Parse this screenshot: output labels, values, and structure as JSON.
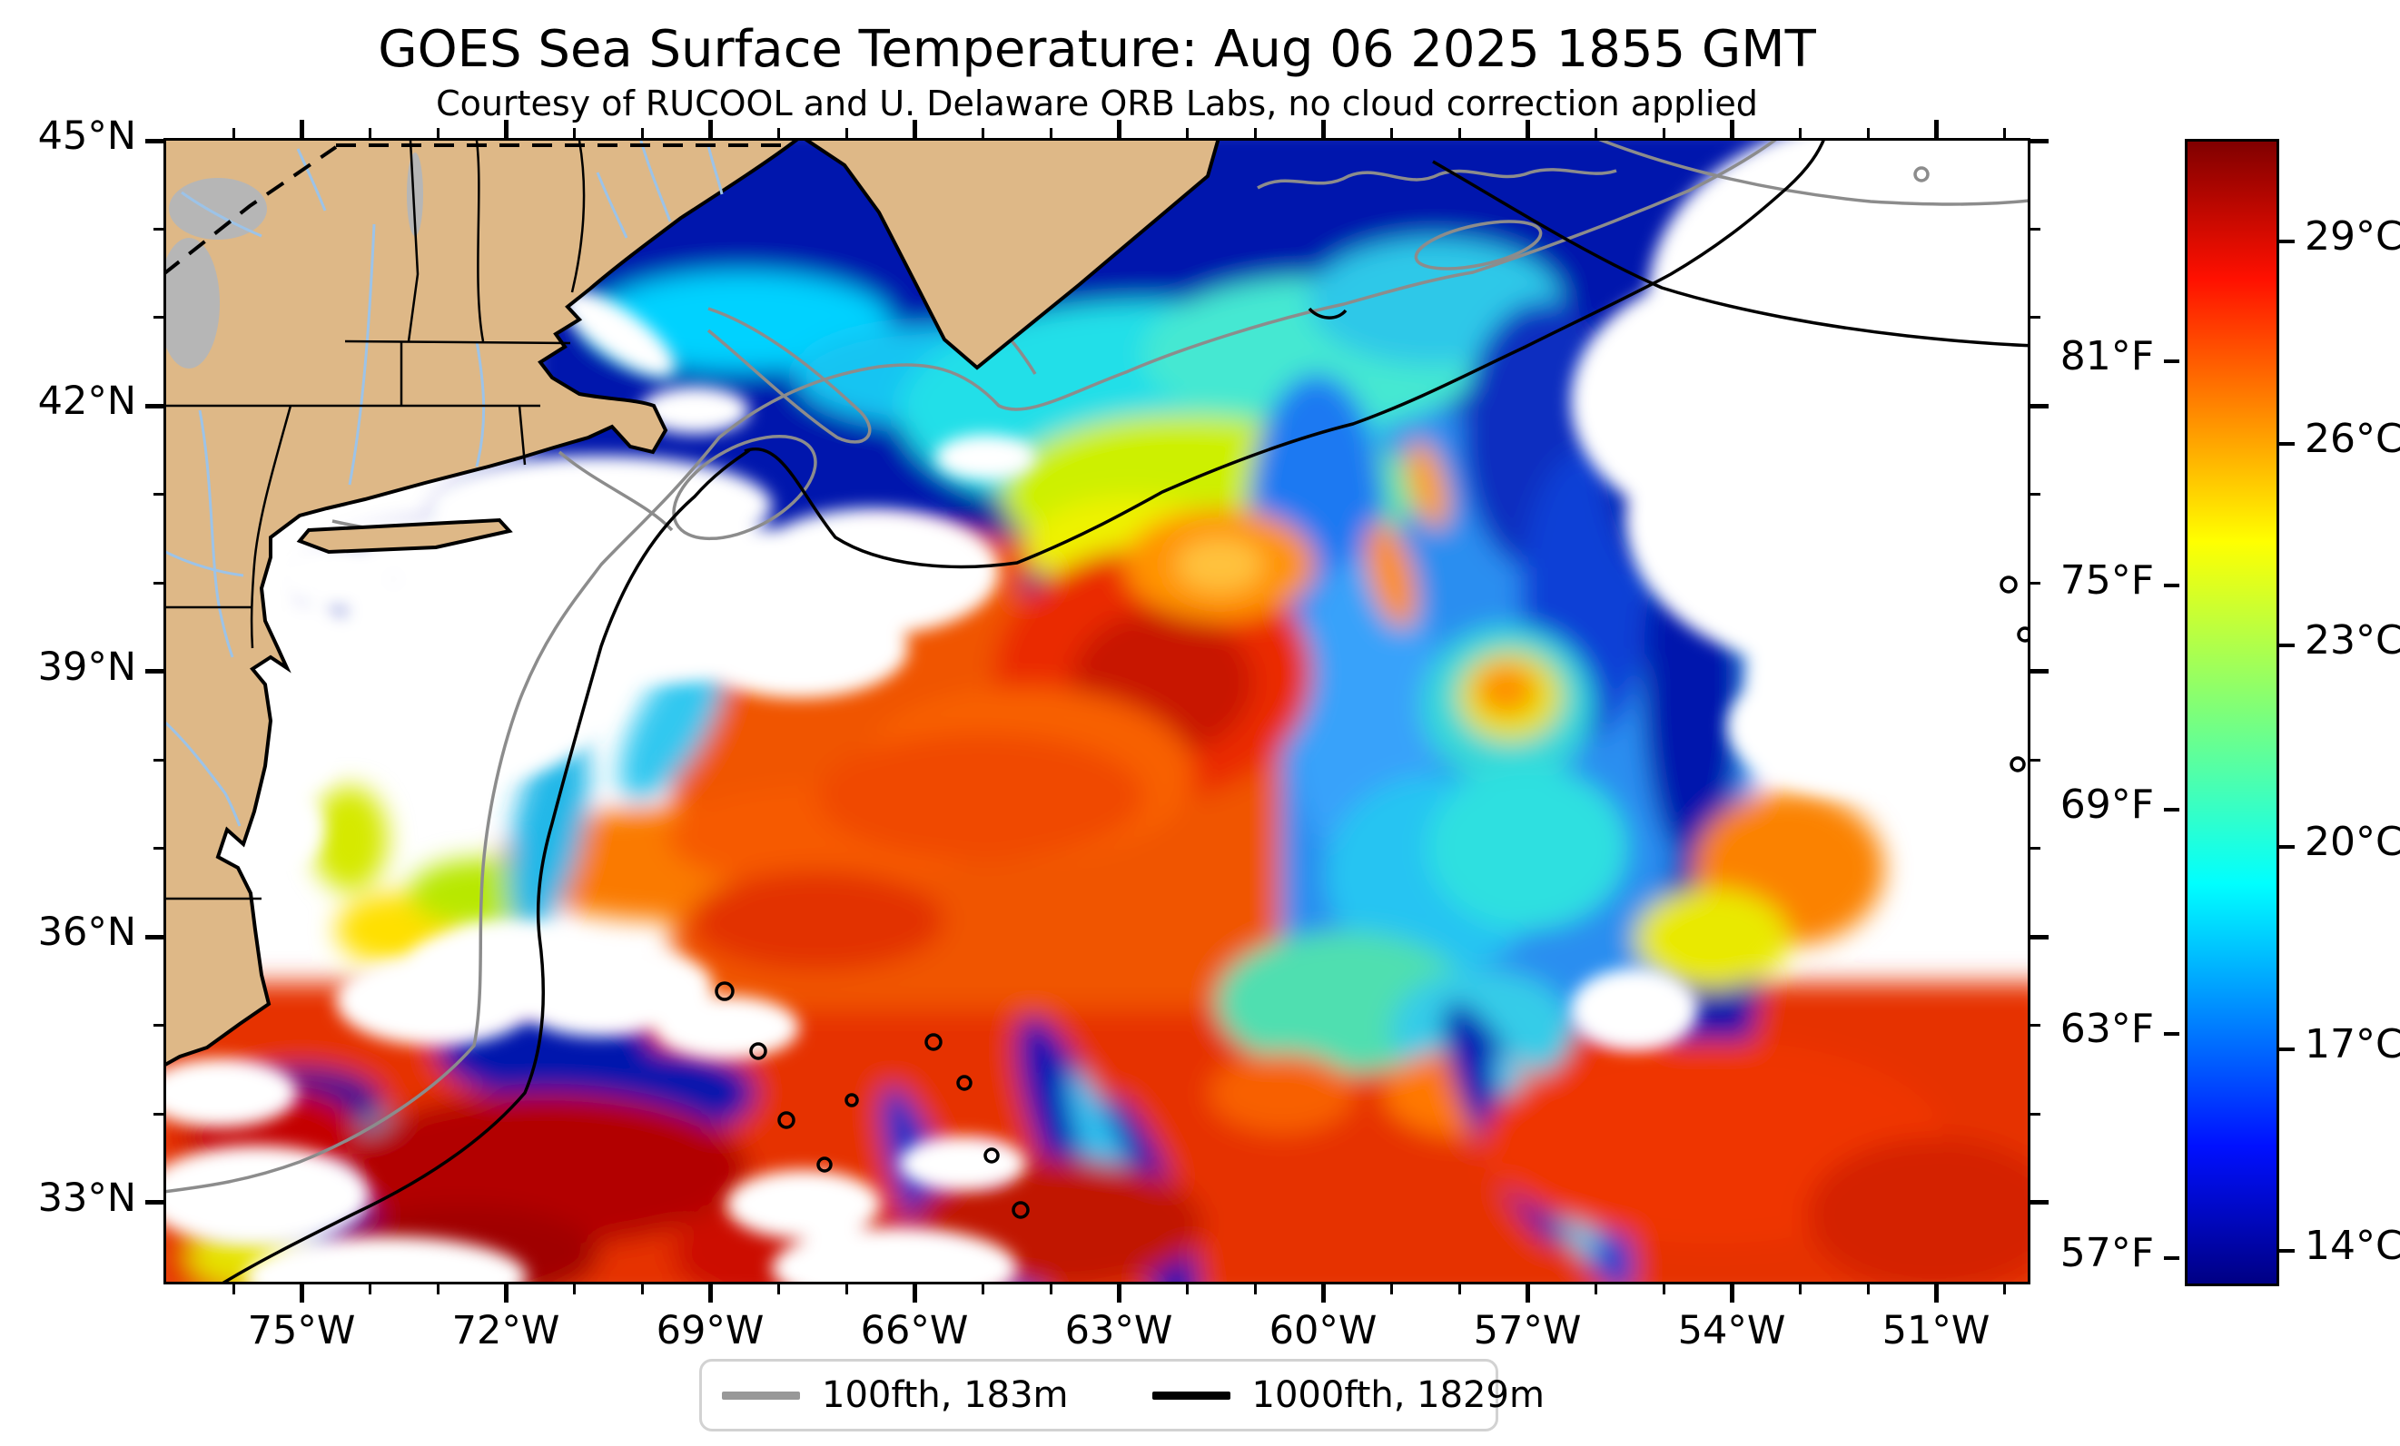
{
  "chart_data": {
    "type": "heatmap",
    "subtype": "geographic sea surface temperature map",
    "title": "GOES Sea Surface Temperature: Aug 06 2025 1855 GMT",
    "subtitle": "Courtesy of RUCOOL and U. Delaware ORB Labs, no cloud correction applied",
    "grid": "off",
    "x_axis": {
      "unit": "degrees west longitude",
      "range_deg_west": [
        77.0,
        49.6
      ],
      "major_tick_values_deg_west": [
        75,
        72,
        69,
        66,
        63,
        60,
        57,
        54,
        51
      ],
      "major_tick_labels": [
        "75°W",
        "72°W",
        "69°W",
        "66°W",
        "63°W",
        "60°W",
        "57°W",
        "54°W",
        "51°W"
      ],
      "minor_tick_values_deg_west": [
        76,
        74,
        73,
        71,
        70,
        68,
        67,
        65,
        64,
        62,
        61,
        59,
        58,
        56,
        55,
        53,
        52,
        50
      ],
      "minor_tick_step_deg": 1
    },
    "y_axis": {
      "unit": "degrees north latitude",
      "range_deg_north": [
        32.05,
        45.0
      ],
      "major_tick_values_deg_north": [
        45,
        42,
        39,
        36,
        33
      ],
      "major_tick_labels": [
        "45°N",
        "42°N",
        "39°N",
        "36°N",
        "33°N"
      ],
      "minor_tick_values_deg_north": [
        44,
        43,
        41,
        40,
        38,
        37,
        35,
        34
      ],
      "minor_tick_step_deg": 1
    },
    "colorbar": {
      "colormap": "jet",
      "orientation": "vertical",
      "range_c": [
        13.5,
        30.5
      ],
      "right_unit": "°C",
      "right_tick_values_c": [
        29,
        26,
        23,
        20,
        17,
        14
      ],
      "right_tick_labels": [
        "29°C",
        "26°C",
        "23°C",
        "20°C",
        "17°C",
        "14°C"
      ],
      "left_unit": "°F",
      "left_tick_values_f": [
        81,
        75,
        69,
        63,
        57
      ],
      "left_tick_labels": [
        "81°F",
        "75°F",
        "69°F",
        "63°F",
        "57°F"
      ],
      "gradient_stops": [
        [
          "0%",
          "#000084"
        ],
        [
          "12%",
          "#0010ff"
        ],
        [
          "35%",
          "#00ffff"
        ],
        [
          "50%",
          "#7dff7a"
        ],
        [
          "65%",
          "#ffff00"
        ],
        [
          "88%",
          "#ff1000"
        ],
        [
          "100%",
          "#800000"
        ]
      ]
    },
    "legend": {
      "items": [
        {
          "label": "100fth, 183m",
          "line_color": "#989898",
          "meaning": "100 fathom (183 m) depth contour"
        },
        {
          "label": "1000fth, 1829m",
          "line_color": "#000000",
          "meaning": "1000 fathom (1829 m) depth contour"
        }
      ]
    },
    "map_colors": {
      "land": "#deb887",
      "lakes": "#b6b6b6",
      "rivers": "#9cc3e8",
      "coast_and_state_borders": "#000000",
      "contour_100fth": "#8c8c8c",
      "contour_1000fth": "#000000",
      "cloud_no_data": "#ffffff",
      "coldest_water": "#0013ad",
      "warmest_water": "#a00000"
    },
    "map_features": [
      "northeast-us-and-canada-land",
      "nova-scotia-peninsula",
      "gulf-of-maine-cold-water",
      "scotian-shelf-turquoise-water",
      "warm-core-ring-red",
      "gulf-stream-orange-band",
      "cyclonic-cold-wake-swirl",
      "sargasso-warm-red-water",
      "white-cloud-no-data-areas",
      "us-canada-border-dashed"
    ]
  }
}
